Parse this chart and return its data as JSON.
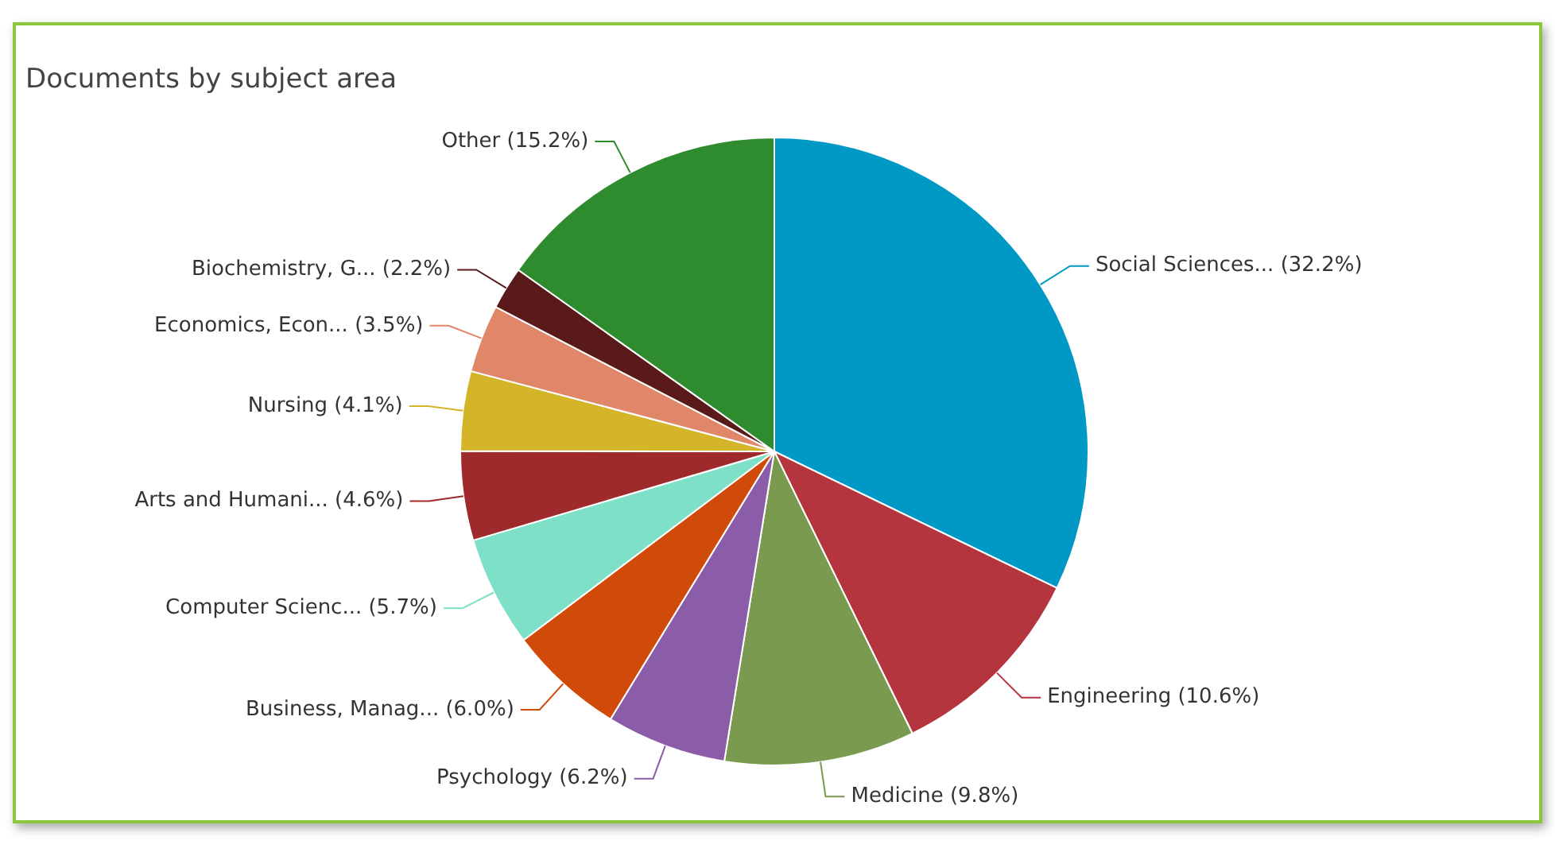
{
  "chart_data": {
    "type": "pie",
    "title": "Documents by subject area",
    "categories": [
      "Social Sciences...",
      "Engineering",
      "Medicine",
      "Psychology",
      "Business, Manag...",
      "Computer Scienc...",
      "Arts and Humani...",
      "Nursing",
      "Economics, Econ...",
      "Biochemistry, G...",
      "Other"
    ],
    "values": [
      32.2,
      10.6,
      9.8,
      6.2,
      6.0,
      5.7,
      4.6,
      4.1,
      3.5,
      2.2,
      15.2
    ],
    "value_labels": [
      "(32.2%)",
      "(10.6%)",
      "(9.8%)",
      "(6.2%)",
      "(6.0%)",
      "(5.7%)",
      "(4.6%)",
      "(4.1%)",
      "(3.5%)",
      "(2.2%)",
      "(15.2%)"
    ],
    "colors": [
      "#0099c6",
      "#b5353e",
      "#7a9a50",
      "#8b5ca8",
      "#d04a0a",
      "#7fe0c8",
      "#9e2a2b",
      "#d4b52a",
      "#e0876a",
      "#5a1a1a",
      "#2e8b2e"
    ],
    "legend": false
  }
}
